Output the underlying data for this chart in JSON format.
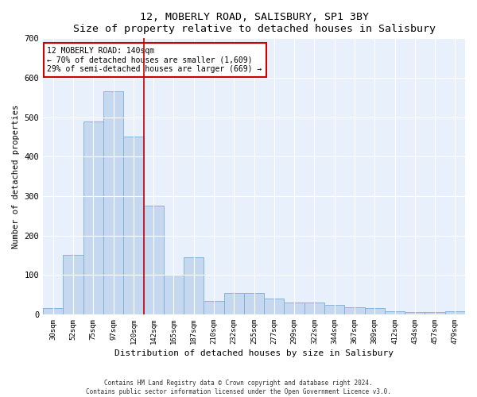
{
  "title": "12, MOBERLY ROAD, SALISBURY, SP1 3BY",
  "subtitle": "Size of property relative to detached houses in Salisbury",
  "xlabel": "Distribution of detached houses by size in Salisbury",
  "ylabel": "Number of detached properties",
  "categories": [
    "30sqm",
    "52sqm",
    "75sqm",
    "97sqm",
    "120sqm",
    "142sqm",
    "165sqm",
    "187sqm",
    "210sqm",
    "232sqm",
    "255sqm",
    "277sqm",
    "299sqm",
    "322sqm",
    "344sqm",
    "367sqm",
    "389sqm",
    "412sqm",
    "434sqm",
    "457sqm",
    "479sqm"
  ],
  "values": [
    15,
    150,
    490,
    565,
    450,
    275,
    100,
    145,
    35,
    55,
    55,
    40,
    30,
    30,
    25,
    18,
    15,
    8,
    5,
    5,
    8
  ],
  "bar_color": "#c5d8f0",
  "bar_edge_color": "#7badd4",
  "background_color": "#e8f0fb",
  "grid_color": "#ffffff",
  "vline_color": "#cc0000",
  "annotation_text": "12 MOBERLY ROAD: 140sqm\n← 70% of detached houses are smaller (1,609)\n29% of semi-detached houses are larger (669) →",
  "annotation_box_color": "#cc0000",
  "ylim": [
    0,
    700
  ],
  "yticks": [
    0,
    100,
    200,
    300,
    400,
    500,
    600,
    700
  ],
  "footer1": "Contains HM Land Registry data © Crown copyright and database right 2024.",
  "footer2": "Contains public sector information licensed under the Open Government Licence v3.0."
}
